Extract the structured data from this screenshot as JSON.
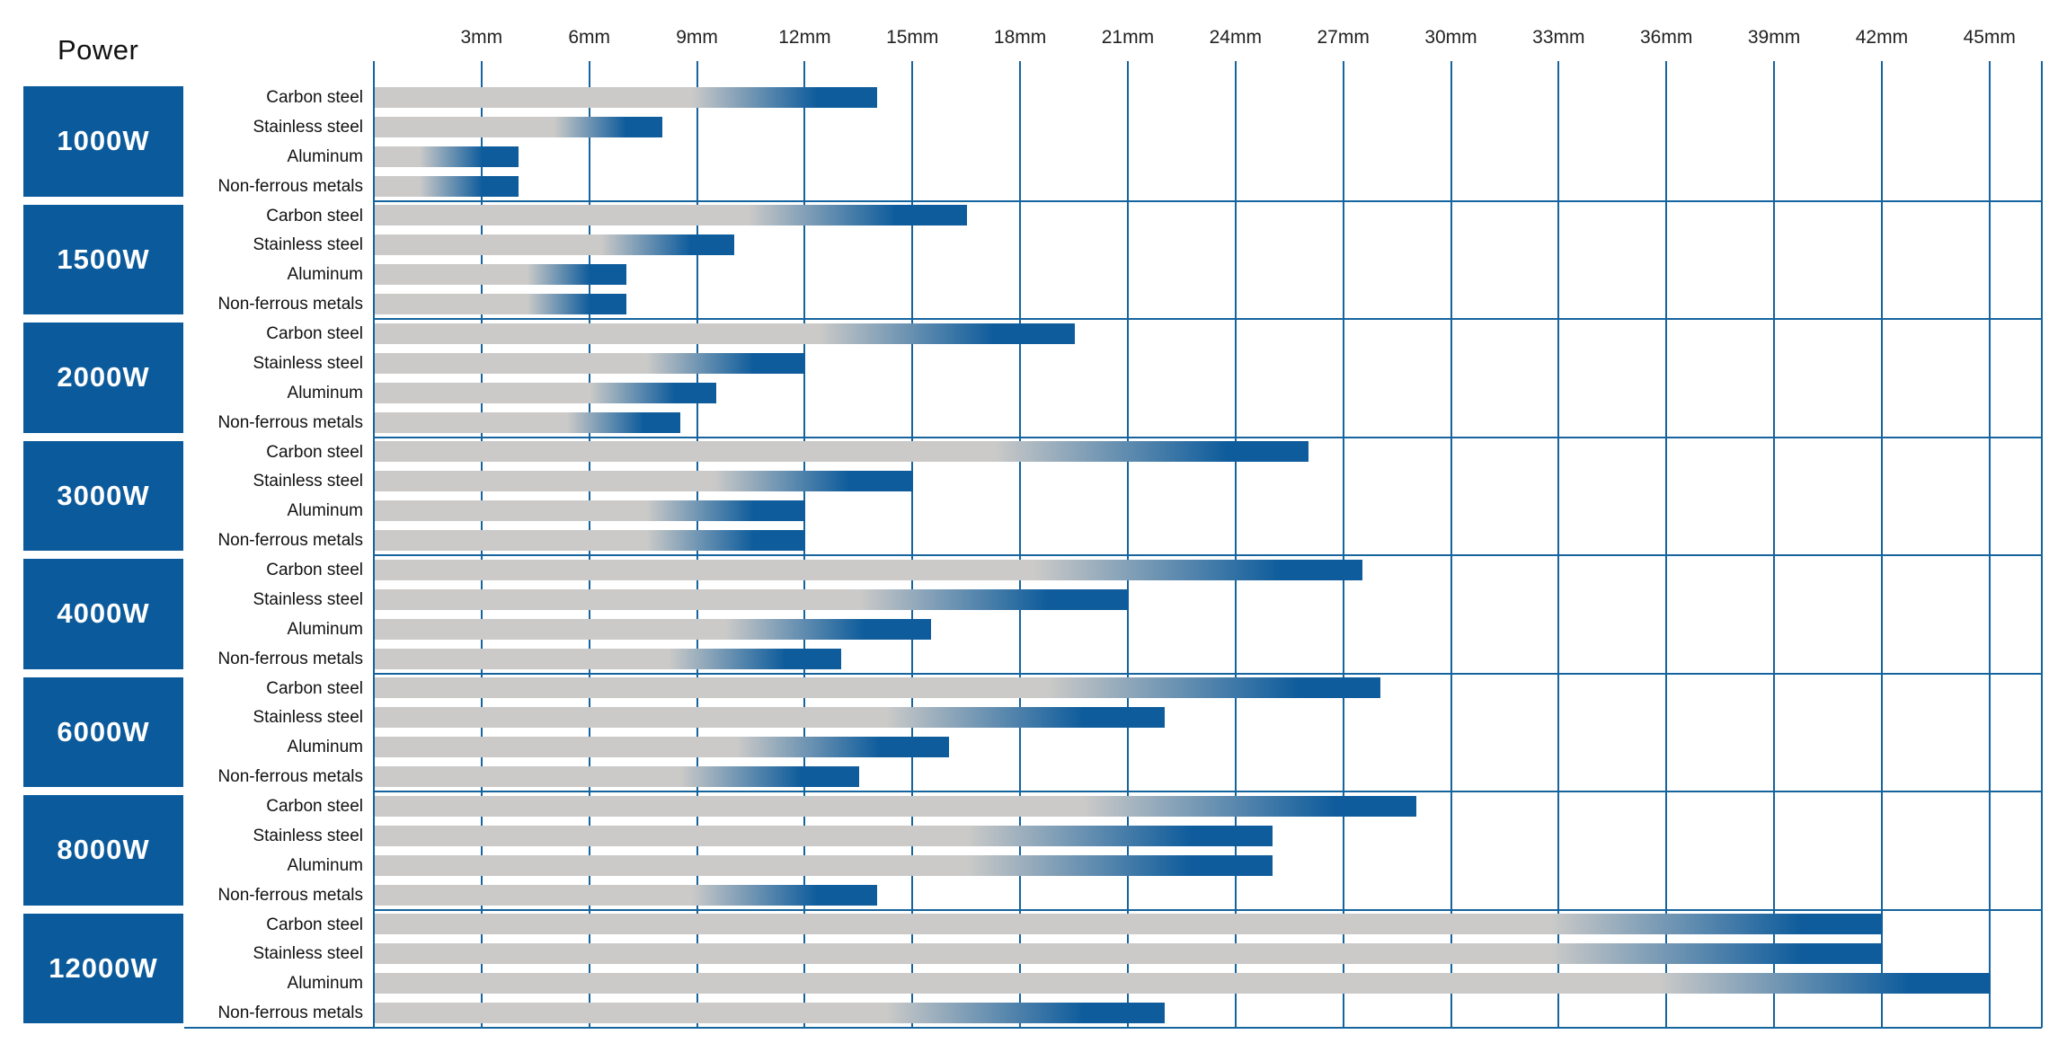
{
  "title": "Power",
  "axis": {
    "unit": "mm",
    "gridline_step_mm": 3,
    "max_mm": 45,
    "ticks_mm": [
      3,
      6,
      9,
      12,
      15,
      18,
      21,
      24,
      27,
      30,
      33,
      36,
      39,
      42,
      45
    ],
    "tick_labels": [
      "3mm",
      "6mm",
      "9mm",
      "12mm",
      "15mm",
      "18mm",
      "21mm",
      "24mm",
      "27mm",
      "30mm",
      "33mm",
      "36mm",
      "39mm",
      "42mm",
      "45mm"
    ]
  },
  "colors": {
    "grid_blue": "#15649e",
    "power_box_blue": "#0b5a9b",
    "bar_gray": "#cbcac8",
    "bar_blue": "#0e5c9c",
    "power_text": "#ffffff",
    "label_text": "#111111"
  },
  "chart_data": {
    "type": "bar",
    "orientation": "horizontal",
    "title": "Power",
    "xlabel": "",
    "x_unit": "mm",
    "xlim": [
      0,
      45
    ],
    "grid": true,
    "legend": false,
    "categories": [
      "Carbon steel",
      "Stainless steel",
      "Aluminum",
      "Non-ferrous metals"
    ],
    "series": [
      {
        "name": "1000W",
        "values_mm": [
          14,
          8,
          4,
          4
        ]
      },
      {
        "name": "1500W",
        "values_mm": [
          16.5,
          10,
          7,
          7
        ]
      },
      {
        "name": "2000W",
        "values_mm": [
          19.5,
          12,
          9.5,
          8.5
        ]
      },
      {
        "name": "3000W",
        "values_mm": [
          26,
          15,
          12,
          12
        ]
      },
      {
        "name": "4000W",
        "values_mm": [
          27.5,
          21,
          15.5,
          13
        ]
      },
      {
        "name": "6000W",
        "values_mm": [
          28,
          22,
          16,
          13.5
        ]
      },
      {
        "name": "8000W",
        "values_mm": [
          29,
          25,
          25,
          14
        ]
      },
      {
        "name": "12000W",
        "values_mm": [
          42,
          42,
          45,
          22
        ]
      }
    ]
  }
}
